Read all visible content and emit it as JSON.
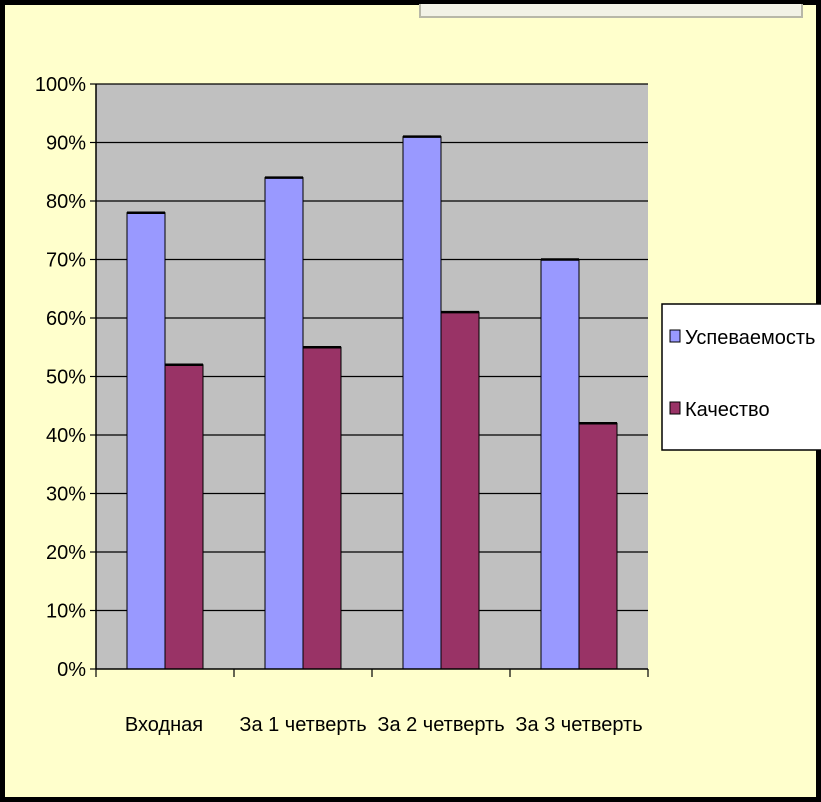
{
  "chart_data": {
    "type": "bar",
    "categories": [
      "Входная",
      "За 1 четверть",
      "За 2 четверть",
      "За 3 четверть"
    ],
    "series": [
      {
        "name": "Успеваемость",
        "values": [
          78,
          84,
          91,
          70
        ],
        "color": "#9999ff"
      },
      {
        "name": "Качество",
        "values": [
          52,
          55,
          61,
          42
        ],
        "color": "#993366"
      }
    ],
    "y_ticks": [
      "0%",
      "10%",
      "20%",
      "30%",
      "40%",
      "50%",
      "60%",
      "70%",
      "80%",
      "90%",
      "100%"
    ],
    "ylim": [
      0,
      100
    ],
    "grid": true,
    "legend_position": "right",
    "plot_background": "#c0c0c0",
    "page_background": "#ffffcc",
    "frame_color": "#000000"
  }
}
